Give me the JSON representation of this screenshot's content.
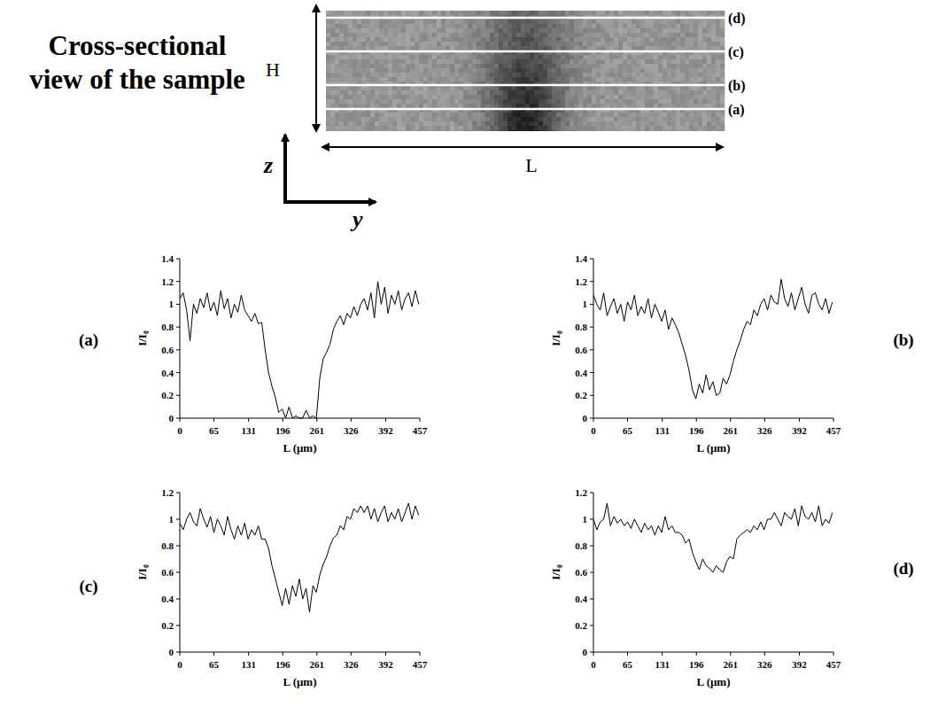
{
  "diagram": {
    "title_lines": [
      "Cross-sectional",
      "view of the sample"
    ],
    "height_label": "H",
    "length_label": "L",
    "vertical_axis": "z",
    "horizontal_axis": "y",
    "lines": [
      "(d)",
      "(c)",
      "(b)",
      "(a)"
    ]
  },
  "chart_data": [
    {
      "type": "line",
      "title": "(a)",
      "x_label": "L (μm)",
      "y_label": "I/I₀",
      "color": "#000000",
      "x": [
        0,
        6.5,
        13,
        19.5,
        26,
        32.5,
        39,
        45.5,
        52,
        58.5,
        65,
        71.5,
        78,
        84.5,
        91,
        97.5,
        104,
        110.5,
        117,
        123.5,
        130,
        136.5,
        143,
        149.5,
        156,
        162.5,
        169,
        175.5,
        182,
        188.5,
        195,
        201.5,
        208,
        214.5,
        221,
        227.5,
        234,
        240.5,
        247,
        253.5,
        260,
        266.5,
        273,
        279.5,
        286,
        292.5,
        299,
        305.5,
        312,
        318.5,
        325,
        331.5,
        338,
        344.5,
        351,
        357.5,
        364,
        370.5,
        377,
        383.5,
        390,
        396.5,
        403,
        409.5,
        416,
        422.5,
        429,
        435.5,
        442,
        448.5,
        455
      ],
      "values": [
        1.05,
        1.1,
        0.95,
        0.68,
        1.0,
        0.92,
        1.05,
        0.97,
        1.1,
        0.94,
        1.02,
        0.9,
        1.12,
        0.96,
        1.05,
        0.88,
        1.0,
        0.93,
        1.08,
        0.95,
        0.9,
        0.85,
        0.92,
        0.83,
        0.84,
        0.6,
        0.4,
        0.28,
        0.18,
        0.05,
        0.08,
        0.0,
        0.1,
        0.0,
        0.02,
        0.0,
        0.0,
        0.07,
        0.0,
        0.02,
        0.0,
        0.35,
        0.52,
        0.58,
        0.65,
        0.78,
        0.85,
        0.9,
        0.82,
        0.92,
        0.88,
        0.98,
        0.9,
        1.0,
        1.05,
        0.95,
        1.1,
        0.88,
        1.2,
        1.0,
        1.15,
        0.92,
        1.08,
        1.0,
        1.12,
        0.95,
        1.05,
        1.1,
        0.98,
        1.12,
        1.0
      ],
      "xlim": [
        0,
        457
      ],
      "xticks": [
        0,
        65,
        131,
        196,
        261,
        326,
        392,
        457
      ],
      "ylim": [
        0,
        1.4
      ],
      "yticks": [
        0,
        0.2,
        0.4,
        0.6,
        0.8,
        1,
        1.2,
        1.4
      ]
    },
    {
      "type": "line",
      "title": "(b)",
      "x_label": "L (μm)",
      "y_label": "I/I₀",
      "color": "#000000",
      "x": [
        0,
        6.5,
        13,
        19.5,
        26,
        32.5,
        39,
        45.5,
        52,
        58.5,
        65,
        71.5,
        78,
        84.5,
        91,
        97.5,
        104,
        110.5,
        117,
        123.5,
        130,
        136.5,
        143,
        149.5,
        156,
        162.5,
        169,
        175.5,
        182,
        188.5,
        195,
        201.5,
        208,
        214.5,
        221,
        227.5,
        234,
        240.5,
        247,
        253.5,
        260,
        266.5,
        273,
        279.5,
        286,
        292.5,
        299,
        305.5,
        312,
        318.5,
        325,
        331.5,
        338,
        344.5,
        351,
        357.5,
        364,
        370.5,
        377,
        383.5,
        390,
        396.5,
        403,
        409.5,
        416,
        422.5,
        429,
        435.5,
        442,
        448.5,
        455
      ],
      "values": [
        1.08,
        1.0,
        0.95,
        1.1,
        0.9,
        0.98,
        1.05,
        0.92,
        1.0,
        0.85,
        1.02,
        0.95,
        1.08,
        0.9,
        0.98,
        0.92,
        1.05,
        0.88,
        1.0,
        0.93,
        0.85,
        0.95,
        0.78,
        0.88,
        0.82,
        0.75,
        0.65,
        0.55,
        0.42,
        0.25,
        0.17,
        0.3,
        0.22,
        0.38,
        0.25,
        0.32,
        0.2,
        0.22,
        0.35,
        0.3,
        0.38,
        0.5,
        0.6,
        0.68,
        0.78,
        0.85,
        0.82,
        0.95,
        0.9,
        1.0,
        1.05,
        0.95,
        1.08,
        1.02,
        1.0,
        1.22,
        1.05,
        0.98,
        1.1,
        0.95,
        1.05,
        1.15,
        1.0,
        0.92,
        1.08,
        1.1,
        1.0,
        0.95,
        1.05,
        0.92,
        1.02
      ],
      "xlim": [
        0,
        457
      ],
      "xticks": [
        0,
        65,
        131,
        196,
        261,
        326,
        392,
        457
      ],
      "ylim": [
        0,
        1.4
      ],
      "yticks": [
        0,
        0.2,
        0.4,
        0.6,
        0.8,
        1,
        1.2,
        1.4
      ]
    },
    {
      "type": "line",
      "title": "(c)",
      "x_label": "L (μm)",
      "y_label": "I/I₀",
      "color": "#000000",
      "x": [
        0,
        6.5,
        13,
        19.5,
        26,
        32.5,
        39,
        45.5,
        52,
        58.5,
        65,
        71.5,
        78,
        84.5,
        91,
        97.5,
        104,
        110.5,
        117,
        123.5,
        130,
        136.5,
        143,
        149.5,
        156,
        162.5,
        169,
        175.5,
        182,
        188.5,
        195,
        201.5,
        208,
        214.5,
        221,
        227.5,
        234,
        240.5,
        247,
        253.5,
        260,
        266.5,
        273,
        279.5,
        286,
        292.5,
        299,
        305.5,
        312,
        318.5,
        325,
        331.5,
        338,
        344.5,
        351,
        357.5,
        364,
        370.5,
        377,
        383.5,
        390,
        396.5,
        403,
        409.5,
        416,
        422.5,
        429,
        435.5,
        442,
        448.5,
        455
      ],
      "values": [
        0.97,
        0.92,
        1.0,
        1.05,
        0.98,
        0.95,
        1.08,
        1.0,
        0.94,
        1.02,
        0.9,
        1.0,
        0.95,
        0.88,
        1.02,
        0.92,
        0.85,
        0.95,
        0.88,
        0.97,
        0.85,
        0.92,
        0.88,
        0.95,
        0.85,
        0.85,
        0.78,
        0.65,
        0.55,
        0.45,
        0.35,
        0.48,
        0.36,
        0.5,
        0.42,
        0.55,
        0.4,
        0.48,
        0.3,
        0.5,
        0.45,
        0.58,
        0.66,
        0.72,
        0.8,
        0.86,
        0.88,
        0.95,
        0.92,
        1.02,
        1.0,
        1.08,
        1.05,
        1.1,
        1.05,
        1.1,
        1.0,
        1.08,
        0.98,
        1.05,
        1.1,
        0.98,
        1.05,
        1.0,
        1.08,
        0.98,
        1.05,
        1.12,
        1.0,
        1.1,
        1.03
      ],
      "xlim": [
        0,
        457
      ],
      "xticks": [
        0,
        65,
        131,
        196,
        261,
        326,
        392,
        457
      ],
      "ylim": [
        0,
        1.2
      ],
      "yticks": [
        0,
        0.2,
        0.4,
        0.6,
        0.8,
        1,
        1.2
      ]
    },
    {
      "type": "line",
      "title": "(d)",
      "x_label": "L (μm)",
      "y_label": "I/I₀",
      "color": "#000000",
      "x": [
        0,
        6.5,
        13,
        19.5,
        26,
        32.5,
        39,
        45.5,
        52,
        58.5,
        65,
        71.5,
        78,
        84.5,
        91,
        97.5,
        104,
        110.5,
        117,
        123.5,
        130,
        136.5,
        143,
        149.5,
        156,
        162.5,
        169,
        175.5,
        182,
        188.5,
        195,
        201.5,
        208,
        214.5,
        221,
        227.5,
        234,
        240.5,
        247,
        253.5,
        260,
        266.5,
        273,
        279.5,
        286,
        292.5,
        299,
        305.5,
        312,
        318.5,
        325,
        331.5,
        338,
        344.5,
        351,
        357.5,
        364,
        370.5,
        377,
        383.5,
        390,
        396.5,
        403,
        409.5,
        416,
        422.5,
        429,
        435.5,
        442,
        448.5,
        455
      ],
      "values": [
        1.0,
        0.92,
        0.98,
        1.0,
        1.12,
        0.95,
        1.02,
        0.97,
        1.0,
        0.95,
        0.98,
        0.93,
        1.0,
        0.95,
        0.9,
        0.97,
        0.92,
        0.95,
        0.88,
        0.95,
        0.9,
        1.02,
        0.92,
        0.95,
        0.9,
        0.9,
        0.88,
        0.82,
        0.85,
        0.75,
        0.68,
        0.62,
        0.7,
        0.65,
        0.63,
        0.6,
        0.65,
        0.62,
        0.6,
        0.68,
        0.72,
        0.7,
        0.85,
        0.88,
        0.9,
        0.92,
        0.9,
        0.95,
        0.92,
        0.98,
        0.92,
        1.0,
        1.0,
        1.05,
        1.0,
        0.95,
        1.05,
        1.02,
        1.0,
        1.08,
        0.95,
        1.1,
        1.02,
        1.0,
        1.05,
        0.98,
        1.1,
        0.95,
        1.0,
        0.97,
        1.05
      ],
      "xlim": [
        0,
        457
      ],
      "xticks": [
        0,
        65,
        131,
        196,
        261,
        326,
        392,
        457
      ],
      "ylim": [
        0,
        1.2
      ],
      "yticks": [
        0,
        0.2,
        0.4,
        0.6,
        0.8,
        1,
        1.2
      ]
    }
  ]
}
